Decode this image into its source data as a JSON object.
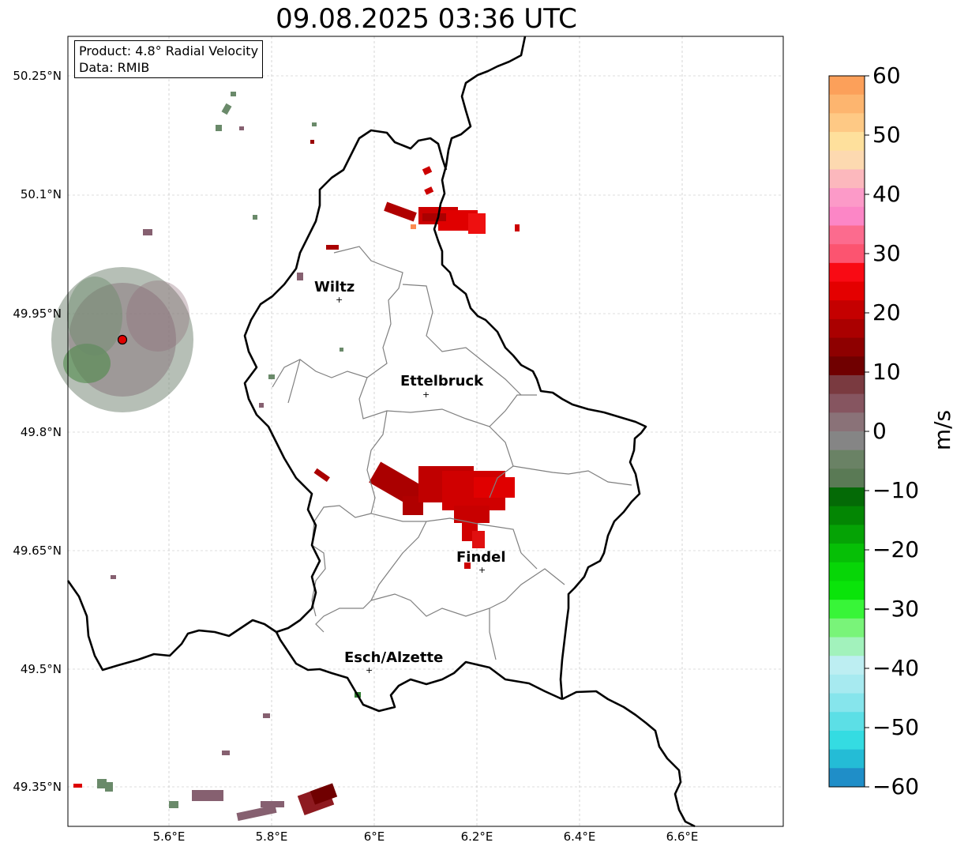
{
  "title": "09.08.2025 03:36 UTC",
  "info": {
    "product": "Product: 4.8° Radial Velocity",
    "data": "Data: RMIB"
  },
  "lat_ticks": [
    "50.25°N",
    "50.1°N",
    "49.95°N",
    "49.8°N",
    "49.65°N",
    "49.5°N",
    "49.35°N"
  ],
  "lon_ticks": [
    "5.6°E",
    "5.8°E",
    "6°E",
    "6.2°E",
    "6.4°E",
    "6.6°E"
  ],
  "cities": [
    {
      "name": "Wiltz"
    },
    {
      "name": "Ettelbruck"
    },
    {
      "name": "Findel"
    },
    {
      "name": "Esch/Alzette"
    }
  ],
  "colorbar": {
    "unit": "m/s",
    "ticks": [
      "60",
      "50",
      "40",
      "30",
      "20",
      "10",
      "0",
      "−10",
      "−20",
      "−30",
      "−40",
      "−50",
      "−60"
    ],
    "colors": [
      "#fca05a",
      "#fdb56f",
      "#fec985",
      "#fee09c",
      "#fdd9b0",
      "#fcb8bd",
      "#fc9ac8",
      "#fc86c6",
      "#fc6b8e",
      "#fc5470",
      "#f90a14",
      "#e40000",
      "#c50000",
      "#aa0000",
      "#8e0000",
      "#700000",
      "#7a3a40",
      "#865560",
      "#8a7278",
      "#858585",
      "#6a8265",
      "#5a7a55",
      "#046a06",
      "#038603",
      "#05a305",
      "#06bf06",
      "#07d607",
      "#0ae40a",
      "#38f538",
      "#79f479",
      "#a2f2bc",
      "#bdeef2",
      "#a7eaf0",
      "#86e5ec",
      "#5cdfe6",
      "#34dce2",
      "#24bcd6",
      "#1f8ec8"
    ]
  }
}
